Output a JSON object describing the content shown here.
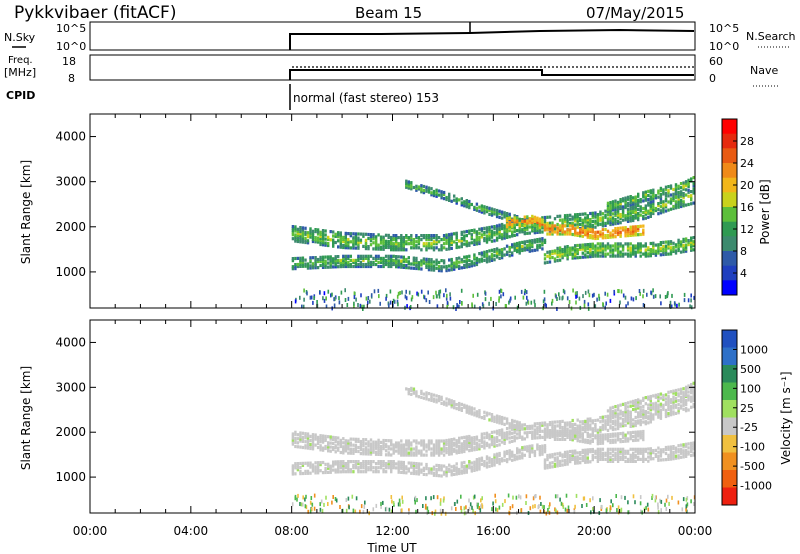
{
  "header": {
    "station": "Pykkvibaer (fitACF)",
    "beam": "Beam 15",
    "date": "07/May/2015"
  },
  "params": {
    "nsky_label": "N.Sky",
    "nsky_ticks": [
      "10^5",
      "10^0"
    ],
    "nsearch_label": "N.Search",
    "nsearch_ticks": [
      "10^5",
      "10^0"
    ],
    "freq_label_1": "Freq.",
    "freq_label_2": "[MHz]",
    "freq_ticks": [
      "18",
      "8"
    ],
    "nave_label": "Nave",
    "nave_ticks": [
      "60",
      "0"
    ],
    "cpid_label": "CPID",
    "cpid_text": "normal (fast stereo) 153"
  },
  "colors": {
    "power_scale": [
      "#0000ff",
      "#1f3fbf",
      "#2e5aa8",
      "#3c8a6e",
      "#2f9a52",
      "#5cbf3a",
      "#c9d21c",
      "#f2b61a",
      "#f08a18",
      "#e85a12",
      "#e62a0e",
      "#ff0000"
    ],
    "velocity_scale": [
      "#2050c0",
      "#2e70c8",
      "#2a8a5a",
      "#4cb84c",
      "#a0e060",
      "#c8c8c8",
      "#f0c040",
      "#f09020",
      "#f06010",
      "#ee2010"
    ]
  },
  "chart_data": [
    {
      "type": "heatmap",
      "name": "power",
      "ylabel": "Slant Range [km]",
      "ylim": [
        200,
        4500
      ],
      "yticks": [
        "4000",
        "3000",
        "2000",
        "1000"
      ],
      "colorbar_label": "Power [dB]",
      "colorbar_ticks": [
        "28",
        "24",
        "20",
        "16",
        "12",
        "8",
        "4"
      ],
      "colorbar_range": [
        0,
        32
      ],
      "bands": [
        {
          "x": [
            8.0,
            10.0,
            12.0,
            14.0,
            16.0,
            17.0,
            18.0,
            20.0,
            22.0,
            23.0,
            24.0
          ],
          "center": [
            1850,
            1700,
            1650,
            1650,
            1850,
            2000,
            2050,
            2150,
            2350,
            2550,
            2700
          ],
          "width": 320,
          "level": 9
        },
        {
          "x": [
            8.0,
            10.0,
            12.0,
            14.0,
            15.0,
            16.0,
            17.0,
            18.0
          ],
          "center": [
            1200,
            1250,
            1250,
            1150,
            1250,
            1400,
            1550,
            1650
          ],
          "width": 260,
          "level": 8
        },
        {
          "x": [
            18.0,
            19.0,
            20.0,
            21.0,
            22.0,
            23.0,
            24.0
          ],
          "center": [
            1350,
            1450,
            1500,
            1500,
            1500,
            1550,
            1650
          ],
          "width": 300,
          "level": 10
        },
        {
          "x": [
            12.5,
            14.0,
            15.5,
            17.0
          ],
          "center": [
            2950,
            2700,
            2400,
            2150
          ],
          "width": 150,
          "level": 8
        },
        {
          "x": [
            20.5,
            22.0,
            23.5,
            24.0
          ],
          "center": [
            2450,
            2700,
            2900,
            3050
          ],
          "width": 220,
          "level": 9
        },
        {
          "x": [
            18.0,
            19.0,
            20.0,
            21.0,
            22.0
          ],
          "center": [
            1950,
            1950,
            1850,
            1900,
            1950
          ],
          "width": 220,
          "level": 18
        },
        {
          "x": [
            16.5,
            17.5,
            18.0
          ],
          "center": [
            2100,
            2150,
            2050
          ],
          "width": 200,
          "level": 17
        }
      ]
    },
    {
      "type": "heatmap",
      "name": "velocity",
      "ylabel": "Slant Range [km]",
      "ylim": [
        200,
        4500
      ],
      "yticks": [
        "4000",
        "3000",
        "2000",
        "1000"
      ],
      "xlabel": "Time UT",
      "xticks": [
        "00:00",
        "04:00",
        "08:00",
        "12:00",
        "16:00",
        "20:00",
        "00:00"
      ],
      "xlim": [
        0,
        24
      ],
      "colorbar_label": "Velocity [m s⁻¹]",
      "colorbar_ticks": [
        "1000",
        "500",
        "100",
        "25",
        "-25",
        "-100",
        "-500",
        "-1000"
      ],
      "colorbar_range": [
        -1200,
        1200
      ],
      "bands": [
        {
          "x": [
            8.0,
            10.0,
            12.0,
            14.0,
            16.0,
            17.0,
            18.0,
            20.0,
            22.0,
            23.0,
            24.0
          ],
          "center": [
            1850,
            1700,
            1650,
            1650,
            1850,
            2000,
            2050,
            2150,
            2350,
            2550,
            2700
          ],
          "width": 320,
          "level": 0
        },
        {
          "x": [
            8.0,
            10.0,
            12.0,
            14.0,
            15.0,
            16.0,
            17.0,
            18.0
          ],
          "center": [
            1200,
            1250,
            1250,
            1150,
            1250,
            1400,
            1550,
            1650
          ],
          "width": 260,
          "level": 0
        },
        {
          "x": [
            18.0,
            19.0,
            20.0,
            21.0,
            22.0,
            23.0,
            24.0
          ],
          "center": [
            1350,
            1450,
            1500,
            1500,
            1500,
            1550,
            1650
          ],
          "width": 300,
          "level": 0
        },
        {
          "x": [
            12.5,
            14.0,
            15.5,
            17.0
          ],
          "center": [
            2950,
            2700,
            2400,
            2150
          ],
          "width": 150,
          "level": 0
        },
        {
          "x": [
            20.5,
            22.0,
            23.5,
            24.0
          ],
          "center": [
            2450,
            2700,
            2900,
            3050
          ],
          "width": 220,
          "level": -40
        },
        {
          "x": [
            18.0,
            19.0,
            20.0,
            21.0,
            22.0
          ],
          "center": [
            1950,
            1950,
            1850,
            1900,
            1950
          ],
          "width": 220,
          "level": 0
        }
      ]
    }
  ]
}
